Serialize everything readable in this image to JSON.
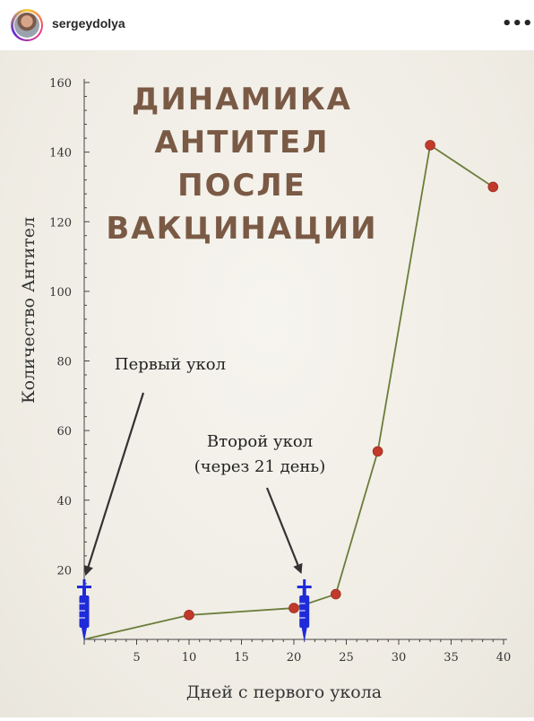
{
  "post": {
    "username": "sergeydolya",
    "more_icon": "more-horizontal-icon"
  },
  "colors": {
    "line": "#6b7d3a",
    "marker": "#c0392b",
    "title": "#7a5a45",
    "syringe": "#1f2bd9",
    "axis": "#444444",
    "arrow": "#333333"
  },
  "chart_data": {
    "type": "line",
    "title_lines": [
      "ДИНАМИКА",
      "АНТИТЕЛ",
      "ПОСЛЕ",
      "ВАКЦИНАЦИИ"
    ],
    "xlabel": "Дней с первого укола",
    "ylabel": "Количество Антител",
    "xlim": [
      0,
      40
    ],
    "ylim": [
      0,
      160
    ],
    "x_ticks": [
      5,
      10,
      15,
      20,
      25,
      30,
      35,
      40
    ],
    "y_ticks": [
      20,
      40,
      60,
      80,
      100,
      120,
      140,
      160
    ],
    "series": [
      {
        "x": [
          0,
          10,
          20,
          24,
          28,
          33,
          39
        ],
        "y": [
          0,
          7,
          9,
          13,
          54,
          142,
          130
        ],
        "marked": [
          false,
          true,
          true,
          true,
          true,
          true,
          true
        ]
      }
    ],
    "annotations": [
      {
        "lines": [
          "Первый укол"
        ],
        "x": 0
      },
      {
        "lines": [
          "Второй укол",
          "(через 21 день)"
        ],
        "x": 21
      }
    ]
  }
}
